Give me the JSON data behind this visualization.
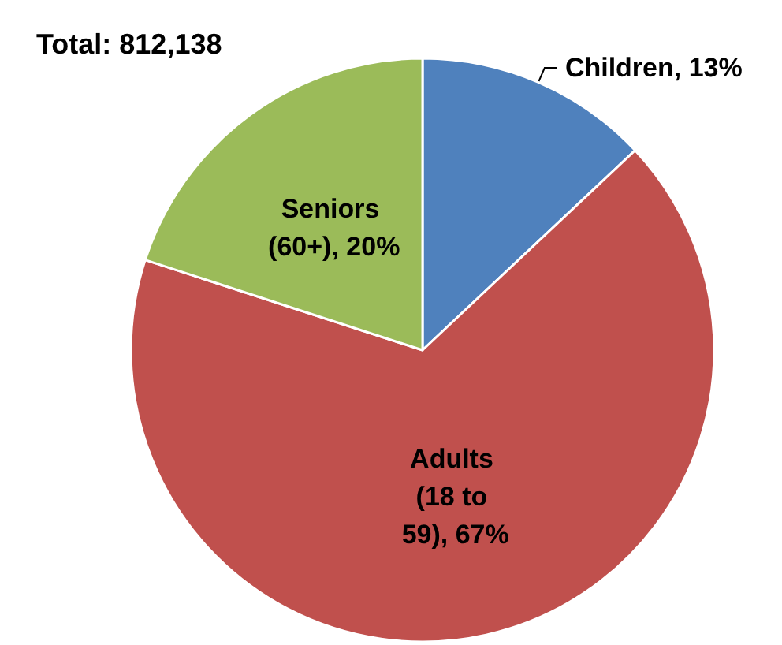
{
  "chart_data": {
    "type": "pie",
    "title": "Total: 812,138",
    "categories": [
      "Children",
      "Adults (18 to 59)",
      "Seniors (60+)"
    ],
    "values": [
      13,
      67,
      20
    ],
    "colors": [
      "#4f81bd",
      "#c0504d",
      "#9bbb59"
    ],
    "value_labels": [
      "13%",
      "67%",
      "20%"
    ],
    "legend": false
  }
}
